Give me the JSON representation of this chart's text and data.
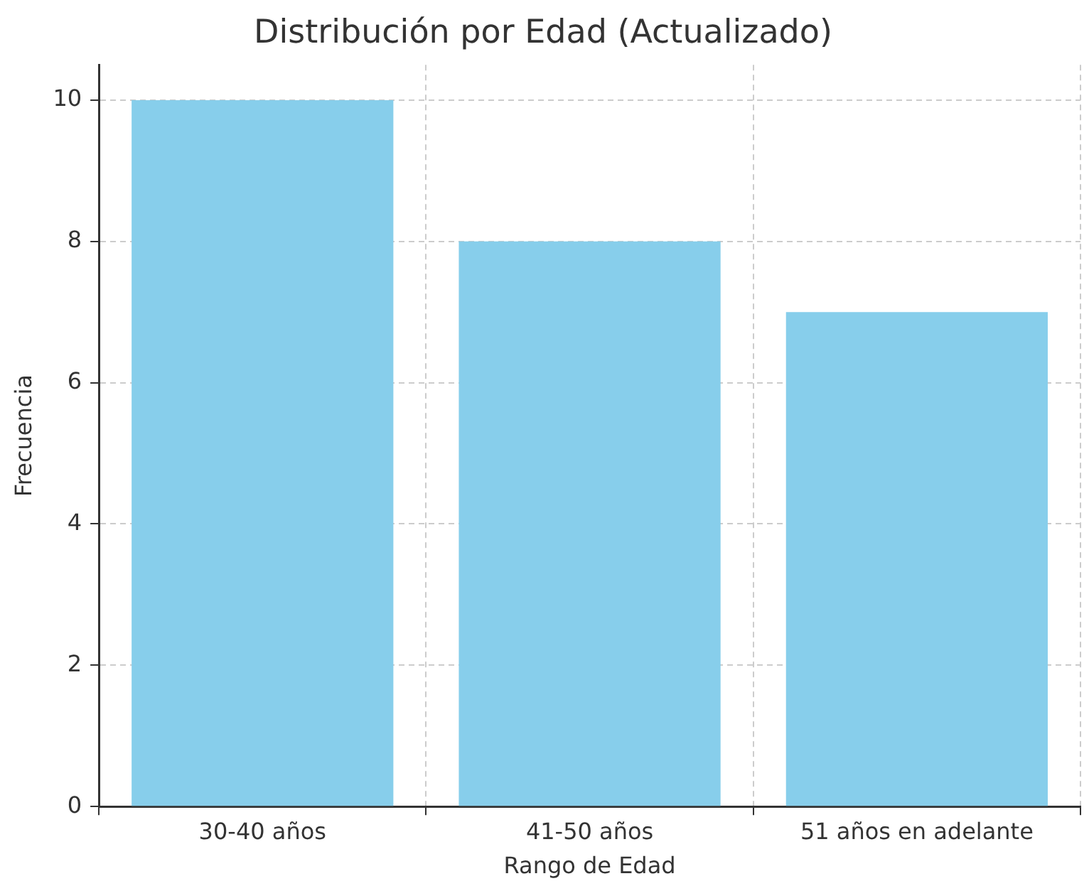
{
  "chart_data": {
    "type": "bar",
    "title": "Distribución por Edad (Actualizado)",
    "xlabel": "Rango de Edad",
    "ylabel": "Frecuencia",
    "categories": [
      "30-40 años",
      "41-50 años",
      "51 años en adelante"
    ],
    "values": [
      10,
      8,
      7
    ],
    "color": "#87ceeb",
    "ylim": [
      0,
      10.5
    ],
    "yticks": [
      0,
      2,
      4,
      6,
      8,
      10
    ],
    "grid": true
  }
}
